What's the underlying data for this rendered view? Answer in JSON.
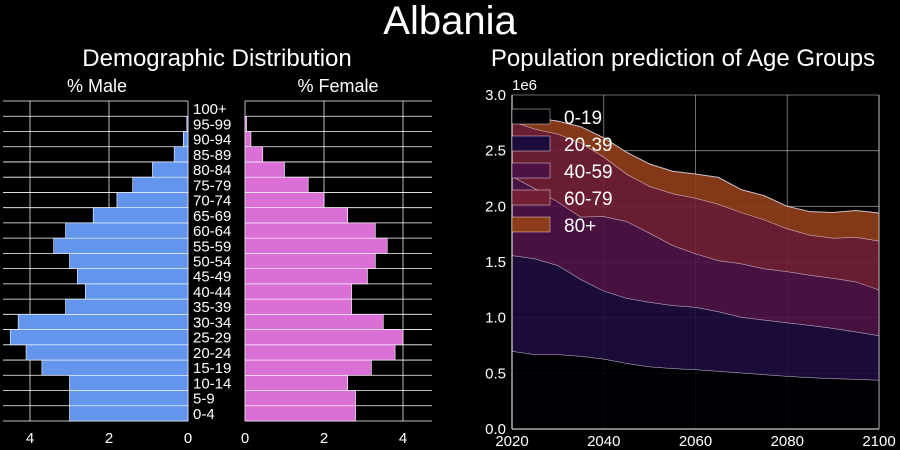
{
  "figure": {
    "title": "Albania"
  },
  "chart_data": [
    {
      "type": "bar",
      "title": "Demographic Distribution",
      "subtitle_left": "% Male",
      "subtitle_right": "% Female",
      "orientation": "horizontal-pyramid",
      "categories": [
        "0-4",
        "5-9",
        "10-14",
        "15-19",
        "20-24",
        "25-29",
        "30-34",
        "35-39",
        "40-44",
        "45-49",
        "50-54",
        "55-59",
        "60-64",
        "65-69",
        "70-74",
        "75-79",
        "80-84",
        "85-89",
        "90-94",
        "95-99",
        "100+"
      ],
      "series": [
        {
          "name": "% Male",
          "values": [
            3.0,
            3.0,
            3.0,
            3.7,
            4.1,
            4.5,
            4.3,
            3.1,
            2.6,
            2.8,
            3.0,
            3.4,
            3.1,
            2.4,
            1.8,
            1.4,
            0.9,
            0.35,
            0.12,
            0.03,
            0.0
          ]
        },
        {
          "name": "% Female",
          "values": [
            2.8,
            2.8,
            2.6,
            3.2,
            3.8,
            4.0,
            3.5,
            2.7,
            2.7,
            3.1,
            3.3,
            3.6,
            3.3,
            2.6,
            2.0,
            1.6,
            1.0,
            0.45,
            0.15,
            0.04,
            0.0
          ]
        }
      ],
      "xticks": [
        4,
        2,
        0
      ],
      "xlim": [
        0,
        4.7
      ],
      "grid": true,
      "colors": {
        "male": "#6495ed",
        "female": "#da70d6"
      }
    },
    {
      "type": "area",
      "title": "Population prediction of Age Groups",
      "x": [
        2020,
        2025,
        2030,
        2035,
        2040,
        2045,
        2050,
        2055,
        2060,
        2065,
        2070,
        2075,
        2080,
        2085,
        2090,
        2095,
        2100
      ],
      "series": [
        {
          "name": "0-19",
          "values": [
            700000,
            670000,
            670000,
            655000,
            630000,
            590000,
            560000,
            545000,
            535000,
            520000,
            505000,
            490000,
            475000,
            462000,
            455000,
            448000,
            440000
          ]
        },
        {
          "name": "20-39",
          "values": [
            860000,
            860000,
            800000,
            690000,
            610000,
            585000,
            580000,
            565000,
            560000,
            535000,
            500000,
            490000,
            480000,
            470000,
            450000,
            425000,
            400000
          ]
        },
        {
          "name": "40-59",
          "values": [
            710000,
            630000,
            570000,
            560000,
            670000,
            690000,
            620000,
            540000,
            480000,
            460000,
            480000,
            460000,
            460000,
            450000,
            450000,
            450000,
            410000
          ]
        },
        {
          "name": "60-79",
          "values": [
            495000,
            535000,
            610000,
            665000,
            535000,
            425000,
            420000,
            465000,
            500000,
            505000,
            460000,
            440000,
            385000,
            360000,
            360000,
            400000,
            440000
          ]
        },
        {
          "name": "80+",
          "values": [
            95000,
            100000,
            115000,
            145000,
            170000,
            195000,
            200000,
            200000,
            215000,
            240000,
            205000,
            215000,
            200000,
            210000,
            230000,
            240000,
            250000
          ]
        }
      ],
      "xlim": [
        2020,
        2100
      ],
      "ylim": [
        0,
        3000000
      ],
      "xticks": [
        2020,
        2040,
        2060,
        2080,
        2100
      ],
      "yticks": [
        "0.0",
        "0.5",
        "1.0",
        "1.5",
        "2.0",
        "2.5",
        "3.0"
      ],
      "y_scale_label": "1e6",
      "legend": "top-left",
      "grid": true,
      "colors": [
        "#000004",
        "#1c0c3e",
        "#4d1245",
        "#721f35",
        "#8e3d1a"
      ]
    }
  ]
}
